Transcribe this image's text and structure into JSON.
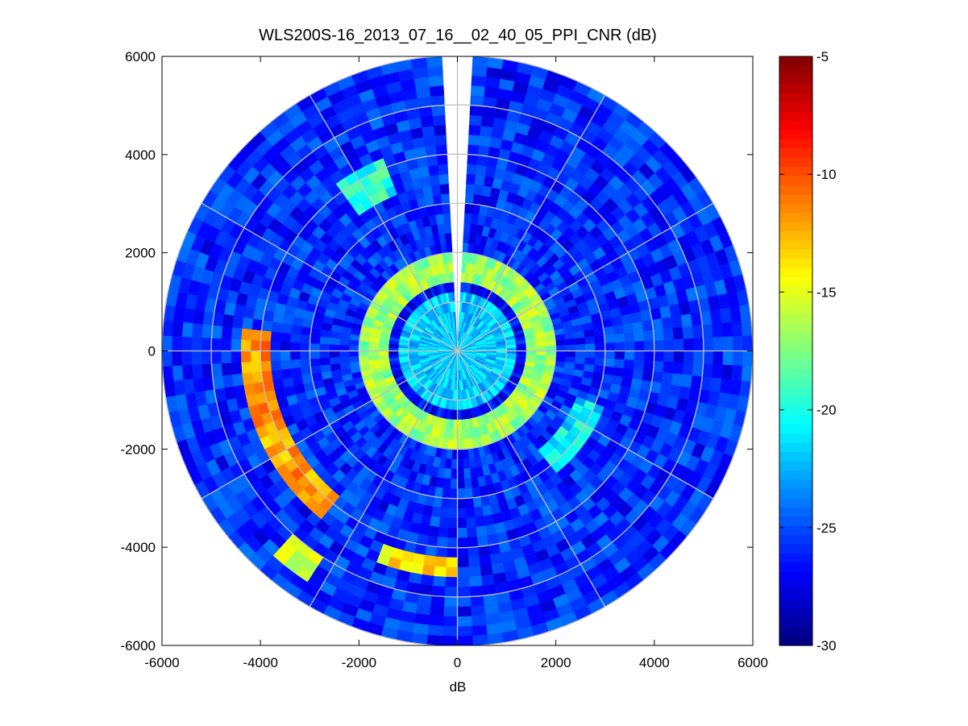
{
  "chart_data": {
    "type": "heatmap",
    "subtype": "polar PPI scan",
    "title": "WLS200S-16_2013_07_16__02_40_05_PPI_CNR (dB)",
    "xlabel": "dB",
    "ylabel": "",
    "xlim": [
      -6000,
      6000
    ],
    "ylim": [
      -6000,
      6000
    ],
    "x_ticks": [
      "-6000",
      "-4000",
      "-2000",
      "0",
      "2000",
      "4000",
      "6000"
    ],
    "y_ticks": [
      "6000",
      "4000",
      "2000",
      "0",
      "-2000",
      "-4000",
      "-6000"
    ],
    "colorbar": {
      "colormap": "jet",
      "range": [
        -30,
        -5
      ],
      "ticks": [
        "-5",
        "-10",
        "-15",
        "-20",
        "-25",
        "-30"
      ]
    },
    "max_range_m": 6000,
    "range_rings_m": [
      1000,
      2000,
      3000,
      4000,
      5000,
      6000
    ],
    "radial_lines_deg": [
      0,
      30,
      60,
      90,
      120,
      150,
      180,
      210,
      240,
      270,
      300,
      330
    ],
    "blanked_sector": {
      "azimuth_from_deg": -4,
      "azimuth_to_deg": 4
    },
    "background_cnr_db": -26,
    "regions": [
      {
        "name": "inner near-field",
        "range_m": [
          0,
          1250
        ],
        "cnr_db": -22
      },
      {
        "name": "dark ring",
        "range_m": [
          1250,
          1450
        ],
        "cnr_db": -27
      },
      {
        "name": "bright ring",
        "range_m": [
          1450,
          2000
        ],
        "cnr_db": -17
      },
      {
        "name": "west arc",
        "range_m": [
          3800,
          4400
        ],
        "azimuth_deg": [
          220,
          275
        ],
        "cnr_db": -12
      },
      {
        "name": "south-southwest streak",
        "range_m": [
          4300,
          4600
        ],
        "azimuth_deg": [
          180,
          200
        ],
        "cnr_db": -14
      },
      {
        "name": "southwest streak",
        "range_m": [
          5000,
          5600
        ],
        "azimuth_deg": [
          213,
          222
        ],
        "cnr_db": -16
      },
      {
        "name": "east-southeast patch",
        "range_m": [
          2600,
          3200
        ],
        "azimuth_deg": [
          110,
          140
        ],
        "cnr_db": -21
      },
      {
        "name": "north patch",
        "range_m": [
          3500,
          4200
        ],
        "azimuth_deg": [
          325,
          340
        ],
        "cnr_db": -20
      }
    ],
    "grid": true,
    "grid_color": "#c0c0c0"
  }
}
